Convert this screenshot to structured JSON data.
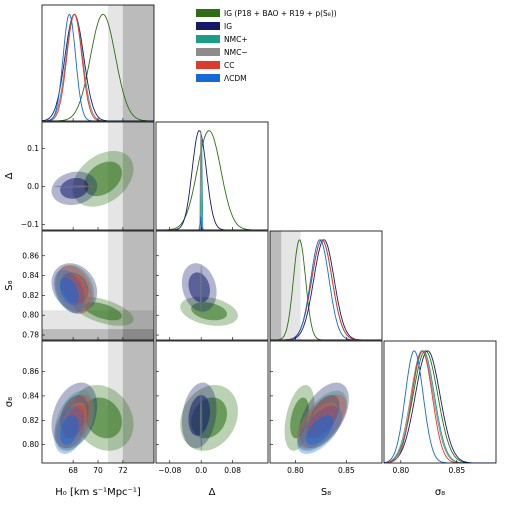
{
  "chart_data": {
    "type": "corner-plot",
    "parameters": [
      {
        "key": "H0",
        "label": "H₀ [km s⁻¹Mpc⁻¹]",
        "range": [
          65.5,
          74.5
        ],
        "ticks": [
          68,
          70,
          72
        ],
        "tick_labels": [
          "68",
          "70",
          "72"
        ]
      },
      {
        "key": "Delta",
        "label": "Δ",
        "range": [
          -0.115,
          0.17
        ],
        "ticks": [
          -0.08,
          0,
          0.08
        ],
        "tick_labels": [
          "−0.08",
          "0.0",
          "0.08"
        ],
        "y_ticks": [
          -0.1,
          0,
          0.1
        ],
        "y_tick_labels": [
          "−0.1",
          "0.0",
          "0.1"
        ]
      },
      {
        "key": "S8",
        "label": "S₈",
        "range": [
          0.775,
          0.885
        ],
        "ticks": [
          0.8,
          0.85
        ],
        "tick_labels": [
          "0.80",
          "0.85"
        ],
        "y_ticks": [
          0.78,
          0.8,
          0.82,
          0.84,
          0.86
        ],
        "y_tick_labels": [
          "0.78",
          "0.80",
          "0.82",
          "0.84",
          "0.86"
        ]
      },
      {
        "key": "sigma8",
        "label": "σ₈",
        "range": [
          0.785,
          0.885
        ],
        "ticks": [
          0.8,
          0.85
        ],
        "tick_labels": [
          "0.80",
          "0.85"
        ],
        "y_ticks": [
          0.8,
          0.82,
          0.84,
          0.86
        ],
        "y_tick_labels": [
          "0.80",
          "0.82",
          "0.84",
          "0.86"
        ]
      }
    ],
    "series": [
      {
        "name": "IG (P18 + BAO + R19 + p(S₈))",
        "color": "#2a6f12",
        "mean": [
          70.4,
          0.02,
          0.804,
          0.822
        ],
        "sd": [
          1.0,
          0.03,
          0.006,
          0.011
        ]
      },
      {
        "name": "IG",
        "color": "#141a6b",
        "mean": [
          68.1,
          -0.005,
          0.828,
          0.824
        ],
        "sd": [
          0.75,
          0.018,
          0.01,
          0.011
        ]
      },
      {
        "name": "NMC+",
        "color": "#17a085",
        "mean": [
          68.1,
          0.001,
          0.826,
          0.82
        ],
        "sd": [
          0.65,
          0.001,
          0.01,
          0.01
        ]
      },
      {
        "name": "NMC−",
        "color": "#8c8c8c",
        "mean": [
          68.1,
          -0.001,
          0.826,
          0.819
        ],
        "sd": [
          0.65,
          0.001,
          0.01,
          0.01
        ]
      },
      {
        "name": "CC",
        "color": "#e03a2a",
        "mean": [
          68.1,
          0,
          0.826,
          0.819
        ],
        "sd": [
          0.6,
          0.0005,
          0.01,
          0.009
        ]
      },
      {
        "name": "ΛCDM",
        "color": "#1469d8",
        "mean": [
          67.7,
          0,
          0.824,
          0.812
        ],
        "sd": [
          0.5,
          0.0005,
          0.009,
          0.008
        ]
      }
    ],
    "priors": {
      "H0_bands": [
        [
          70.8,
          74.5
        ],
        [
          72.0,
          74.5
        ]
      ],
      "S8_bands": [
        [
          0.775,
          0.805
        ],
        [
          0.775,
          0.786
        ]
      ]
    },
    "legend_position": "top-right"
  }
}
